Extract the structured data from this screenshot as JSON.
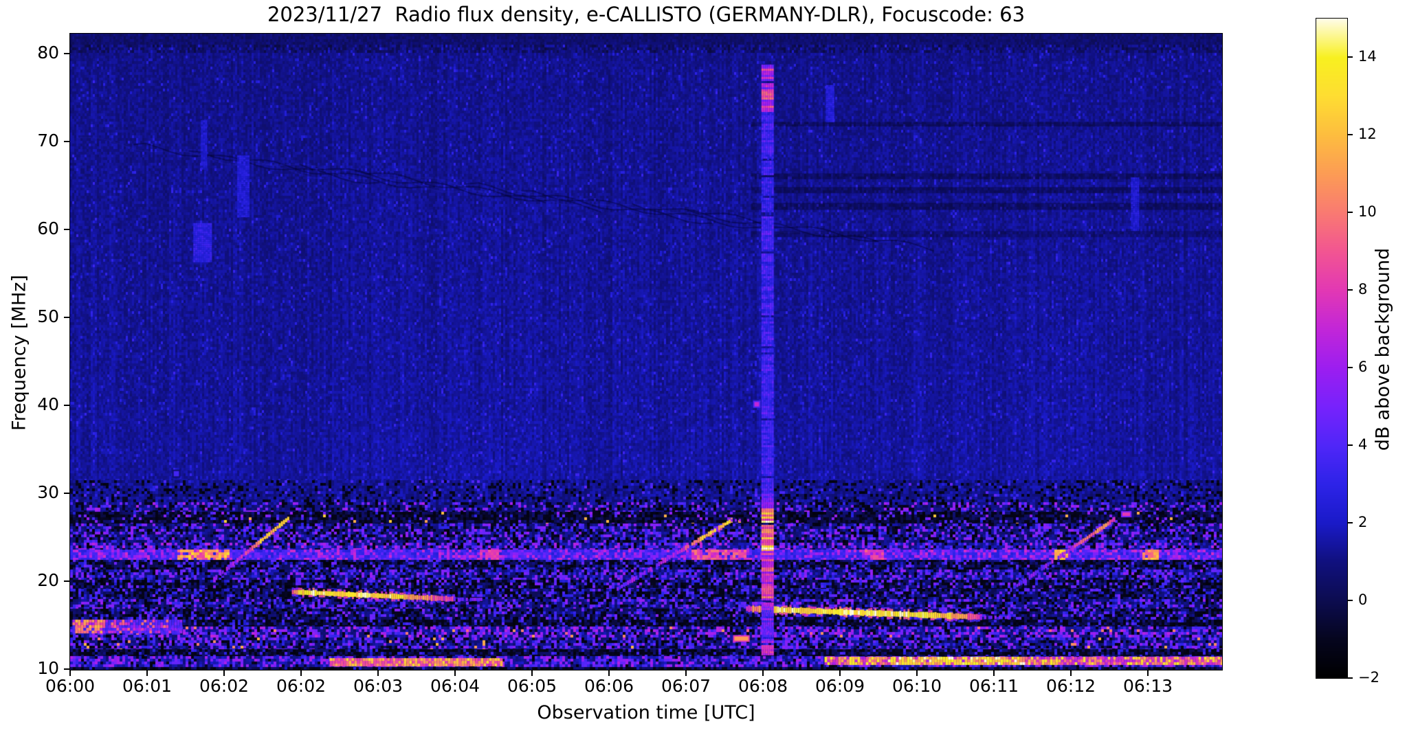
{
  "title": "2023/11/27  Radio flux density, e-CALLISTO (GERMANY-DLR), Focuscode: 63",
  "chart_data": {
    "type": "heatmap",
    "subtype": "solar-radio-spectrogram",
    "title": "2023/11/27  Radio flux density, e-CALLISTO (GERMANY-DLR), Focuscode: 63",
    "xlabel": "Observation time [UTC]",
    "ylabel": "Frequency [MHz]",
    "x_tick_labels": [
      "06:00",
      "06:01",
      "06:02",
      "06:02",
      "06:03",
      "06:04",
      "06:05",
      "06:06",
      "06:07",
      "06:08",
      "06:09",
      "06:10",
      "06:11",
      "06:12",
      "06:13"
    ],
    "x_range_minutes": [
      0,
      14.96
    ],
    "y_tick_labels_top_to_bottom": [
      "80",
      "70",
      "60",
      "50",
      "40",
      "30",
      "20",
      "10"
    ],
    "freq_range_mhz": [
      10,
      82.3
    ],
    "grid": false,
    "colorbar": {
      "label": "dB above background",
      "tick_values": [
        14,
        12,
        10,
        8,
        6,
        4,
        2,
        0,
        -2
      ],
      "tick_labels": [
        "14",
        "12",
        "10",
        "8",
        "6",
        "4",
        "2",
        "0",
        "−2"
      ],
      "range_db": [
        -2,
        15
      ]
    },
    "colormap_stops": [
      [
        -2,
        "#000000"
      ],
      [
        -1,
        "#05051e"
      ],
      [
        0,
        "#0c0c50"
      ],
      [
        1,
        "#10107e"
      ],
      [
        2,
        "#1a1ac8"
      ],
      [
        3,
        "#2d23e8"
      ],
      [
        4,
        "#5026f8"
      ],
      [
        5,
        "#7722fc"
      ],
      [
        6,
        "#9c1ef0"
      ],
      [
        7,
        "#c226d8"
      ],
      [
        8,
        "#e238b4"
      ],
      [
        9,
        "#f25592"
      ],
      [
        10,
        "#f97a72"
      ],
      [
        11,
        "#fc9c55"
      ],
      [
        12,
        "#fdbd3f"
      ],
      [
        13,
        "#fedd32"
      ],
      [
        14,
        "#f8f020"
      ],
      [
        15,
        "#fffce8"
      ]
    ],
    "background_level_db": 1.3,
    "rfi_bands": [
      {
        "ftop": 31.5,
        "fbot": 29.0,
        "base": 1.2,
        "p": 0.06,
        "vmin": 2.5,
        "vmax": 4.5,
        "darkp": 0.18
      },
      {
        "ftop": 29.0,
        "fbot": 27.9,
        "base": 1.0,
        "p": 0.22,
        "vmin": 3.0,
        "vmax": 6.5,
        "darkp": 0.22
      },
      {
        "ftop": 27.9,
        "fbot": 26.6,
        "base": 0.15,
        "p": 0.1,
        "vmin": 2.5,
        "vmax": 6.0,
        "darkp": 0.45,
        "hotp": 0.012,
        "hotv": 11
      },
      {
        "ftop": 26.6,
        "fbot": 24.4,
        "base": 0.9,
        "p": 0.32,
        "vmin": 2.5,
        "vmax": 6.0,
        "darkp": 0.22
      },
      {
        "ftop": 24.4,
        "fbot": 23.6,
        "base": 1.4,
        "p": 0.4,
        "vmin": 3.0,
        "vmax": 7.0,
        "darkp": 0.12
      },
      {
        "ftop": 23.6,
        "fbot": 22.55,
        "base": 2.8,
        "p": 0.5,
        "vmin": 3.5,
        "vmax": 6.5,
        "darkp": 0.05
      },
      {
        "ftop": 22.55,
        "fbot": 21.4,
        "base": 0.5,
        "p": 0.22,
        "vmin": 2.0,
        "vmax": 5.0,
        "darkp": 0.4
      },
      {
        "ftop": 21.4,
        "fbot": 20.2,
        "base": 1.1,
        "p": 0.38,
        "vmin": 2.5,
        "vmax": 6.0,
        "darkp": 0.18
      },
      {
        "ftop": 20.2,
        "fbot": 19.2,
        "base": 0.5,
        "p": 0.26,
        "vmin": 2.0,
        "vmax": 5.5,
        "darkp": 0.38
      },
      {
        "ftop": 19.2,
        "fbot": 18.0,
        "base": 0.7,
        "p": 0.25,
        "vmin": 2.0,
        "vmax": 5.0,
        "darkp": 0.35
      },
      {
        "ftop": 18.0,
        "fbot": 16.9,
        "base": 1.0,
        "p": 0.34,
        "vmin": 2.5,
        "vmax": 6.0,
        "darkp": 0.2
      },
      {
        "ftop": 16.9,
        "fbot": 15.7,
        "base": 0.7,
        "p": 0.26,
        "vmin": 2.0,
        "vmax": 5.5,
        "darkp": 0.3
      },
      {
        "ftop": 15.7,
        "fbot": 14.9,
        "base": 0.25,
        "p": 0.14,
        "vmin": 2.0,
        "vmax": 4.5,
        "darkp": 0.5
      },
      {
        "ftop": 14.9,
        "fbot": 13.6,
        "base": 1.2,
        "p": 0.45,
        "vmin": 3.0,
        "vmax": 7.0,
        "darkp": 0.12,
        "hotp": 0.02,
        "hotv": 9
      },
      {
        "ftop": 13.6,
        "fbot": 12.3,
        "base": 1.0,
        "p": 0.38,
        "vmin": 2.5,
        "vmax": 6.0,
        "darkp": 0.2,
        "hotp": 0.015,
        "hotv": 10
      },
      {
        "ftop": 12.3,
        "fbot": 11.5,
        "base": 0.3,
        "p": 0.12,
        "vmin": 2.0,
        "vmax": 4.0,
        "darkp": 0.5
      },
      {
        "ftop": 11.5,
        "fbot": 10.3,
        "base": 1.4,
        "p": 0.5,
        "vmin": 3.0,
        "vmax": 6.5,
        "darkp": 0.1
      },
      {
        "ftop": 10.3,
        "fbot": 10.0,
        "base": 0.3,
        "p": 0.05,
        "vmin": 1.5,
        "vmax": 3.0,
        "darkp": 0.5
      }
    ],
    "features": [
      {
        "kind": "patch",
        "name": "faint-blue-patch",
        "t0": 1.6,
        "t1": 1.83,
        "f0": 56.5,
        "f1": 60.8,
        "v": 3.0
      },
      {
        "kind": "patch",
        "name": "faint-vertical-streak",
        "t0": 2.17,
        "t1": 2.32,
        "f0": 61.5,
        "f1": 68.5,
        "v": 2.4
      },
      {
        "kind": "patch",
        "name": "thin-vertical-streak",
        "t0": 1.7,
        "t1": 1.76,
        "f0": 67.0,
        "f1": 72.5,
        "v": 2.2
      },
      {
        "kind": "patch",
        "name": "faint-streak-0609",
        "t0": 9.82,
        "t1": 9.92,
        "f0": 72.5,
        "f1": 76.5,
        "v": 2.6
      },
      {
        "kind": "patch",
        "name": "faint-streak-0613",
        "t0": 13.78,
        "t1": 13.88,
        "f0": 60.0,
        "f1": 66.0,
        "v": 2.4
      },
      {
        "kind": "hband",
        "name": "rfi-band-23mhz",
        "f0": 22.55,
        "f1": 23.6,
        "t0": 0,
        "t1": 14.96,
        "base": 3.2,
        "p": 0.55,
        "vmin": 3.5,
        "vmax": 7.5,
        "core": true,
        "patches": [
          {
            "t0": 1.37,
            "t1": 2.04,
            "vmin": 8,
            "vmax": 13
          },
          {
            "t0": 5.3,
            "t1": 5.55,
            "vmin": 7,
            "vmax": 9
          },
          {
            "t0": 8.05,
            "t1": 8.75,
            "vmin": 7,
            "vmax": 10
          },
          {
            "t0": 10.3,
            "t1": 10.55,
            "vmin": 7,
            "vmax": 10
          },
          {
            "t0": 12.77,
            "t1": 12.93,
            "vmin": 11,
            "vmax": 13
          },
          {
            "t0": 13.92,
            "t1": 14.12,
            "vmin": 9,
            "vmax": 13
          }
        ]
      },
      {
        "kind": "hband",
        "name": "left-pink-cluster",
        "f0": 14.2,
        "f1": 15.7,
        "t0": 0.03,
        "t1": 1.45,
        "base": 4,
        "p": 0.5,
        "vmin": 5,
        "vmax": 10,
        "patches": [
          {
            "t0": 0.06,
            "t1": 0.4,
            "vmin": 8,
            "vmax": 12
          }
        ]
      },
      {
        "kind": "hband",
        "name": "bottom-band-left",
        "f0": 10.45,
        "f1": 11.3,
        "t0": 3.37,
        "t1": 5.61,
        "base": 8,
        "p": 0.8,
        "vmin": 8,
        "vmax": 13,
        "patches": []
      },
      {
        "kind": "hband",
        "name": "bottom-band-right",
        "f0": 10.55,
        "f1": 11.45,
        "t0": 9.8,
        "t1": 14.96,
        "base": 7,
        "p": 0.8,
        "vmin": 7,
        "vmax": 14,
        "patches": [
          {
            "t0": 10.6,
            "t1": 12.4,
            "vmin": 10,
            "vmax": 15
          }
        ]
      },
      {
        "kind": "sweep",
        "name": "ionosonde-sweep-0602",
        "t0": 1.86,
        "f0": 20.3,
        "t1": 2.82,
        "f1": 27.2,
        "wpx": 6,
        "stops": [
          [
            0,
            4,
            6
          ],
          [
            0.45,
            6,
            9
          ],
          [
            0.62,
            10,
            13
          ],
          [
            1,
            12,
            15
          ]
        ]
      },
      {
        "kind": "sweep",
        "name": "ionosonde-sweep-0607",
        "t0": 7.1,
        "f0": 19.2,
        "t1": 8.58,
        "f1": 27.0,
        "wpx": 6,
        "stops": [
          [
            0,
            4,
            6
          ],
          [
            0.5,
            5,
            8
          ],
          [
            0.66,
            9,
            12
          ],
          [
            1,
            12,
            15
          ]
        ],
        "capt": 8.8,
        "capv": 6
      },
      {
        "kind": "sweep",
        "name": "ionosonde-sweep-0612",
        "t0": 12.21,
        "f0": 19.1,
        "t1": 13.55,
        "f1": 27.1,
        "wpx": 6,
        "stops": [
          [
            0,
            3,
            5
          ],
          [
            0.55,
            4,
            7
          ],
          [
            0.75,
            8,
            11
          ],
          [
            0.92,
            10,
            12
          ],
          [
            1,
            6,
            8
          ]
        ]
      },
      {
        "kind": "driftline",
        "name": "bright-band-18mhz",
        "t0": 2.88,
        "f0": 18.85,
        "t1": 4.98,
        "f1": 18.05,
        "wpx": 7,
        "stops": [
          [
            0,
            8,
            11
          ],
          [
            0.05,
            12,
            15
          ],
          [
            0.6,
            12,
            15
          ],
          [
            0.8,
            9,
            12
          ],
          [
            1,
            6,
            8
          ]
        ],
        "tailt": 5.34,
        "tailv": 5
      },
      {
        "kind": "driftline",
        "name": "bright-band-16mhz",
        "t0": 8.78,
        "f0": 16.95,
        "t1": 11.82,
        "f1": 16.0,
        "wpx": 8,
        "stops": [
          [
            0,
            7,
            10
          ],
          [
            0.15,
            12,
            15
          ],
          [
            0.75,
            13,
            15
          ],
          [
            0.9,
            10,
            13
          ],
          [
            1,
            7,
            9
          ]
        ],
        "tailt": 12.2,
        "tailv": 5
      },
      {
        "kind": "burst",
        "name": "vertical-burst-0608",
        "t0": 8.98,
        "t1": 9.12,
        "segs": [
          {
            "f0": 30.0,
            "f1": 73.5,
            "vmin": 2.8,
            "vmax": 4.2
          },
          {
            "f0": 73.5,
            "f1": 78.8,
            "vmin": 5.0,
            "vmax": 9.5
          },
          {
            "f0": 28.3,
            "f1": 30.0,
            "vmin": 4.0,
            "vmax": 6.0
          },
          {
            "f0": 23.5,
            "f1": 28.3,
            "vmin": 7.0,
            "vmax": 15.0
          },
          {
            "f0": 17.0,
            "f1": 23.5,
            "vmin": 5.0,
            "vmax": 10.0
          },
          {
            "f0": 13.5,
            "f1": 17.0,
            "vmin": 3.0,
            "vmax": 6.0
          },
          {
            "f0": 11.5,
            "f1": 13.5,
            "vmin": 4.0,
            "vmax": 8.0
          }
        ]
      },
      {
        "kind": "dot",
        "name": "blue-dot-32mhz",
        "t": 1.38,
        "f": 32.3,
        "v": 3.6,
        "wmin": 0.07,
        "hmhz": 0.6
      },
      {
        "kind": "dot",
        "name": "magenta-dot-40mhz",
        "t": 8.92,
        "f": 40.2,
        "v": 7.0,
        "wmin": 0.06,
        "hmhz": 0.5
      },
      {
        "kind": "dot",
        "name": "orange-dash-13mhz",
        "t": 8.72,
        "f": 13.55,
        "v": 11.0,
        "wmin": 0.18,
        "hmhz": 0.45
      },
      {
        "kind": "dot",
        "name": "pink-dash-sweep-top",
        "t": 13.72,
        "f": 27.7,
        "v": 8.0,
        "wmin": 0.1,
        "hmhz": 0.4
      }
    ]
  }
}
